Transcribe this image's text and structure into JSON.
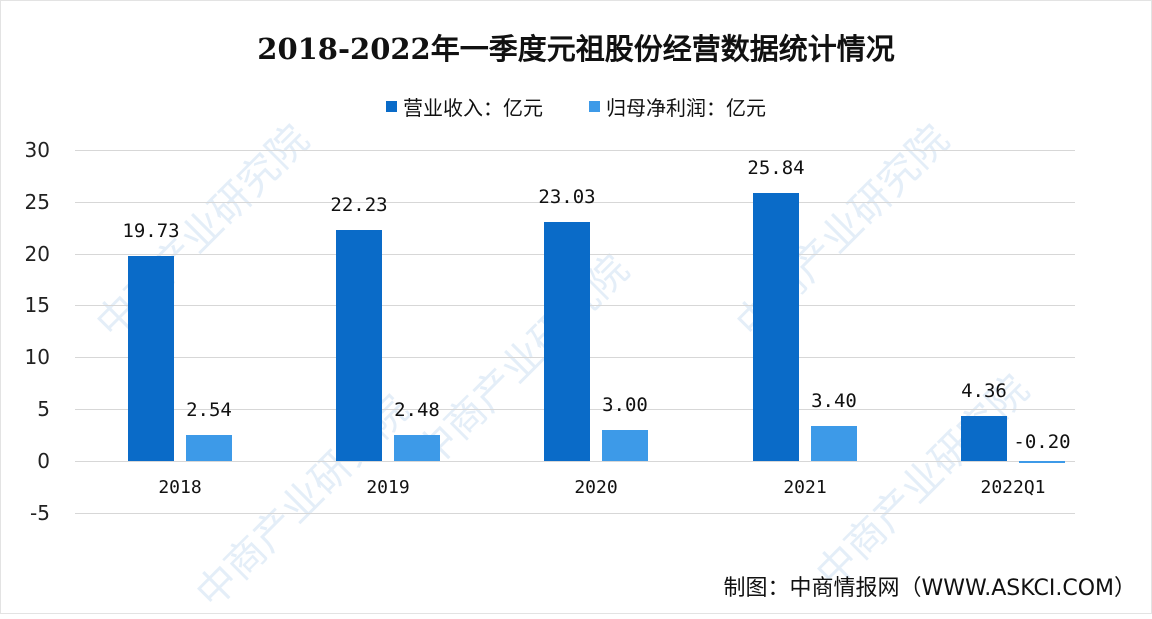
{
  "chart_data": {
    "type": "bar",
    "title": "2018-2022年一季度元祖股份经营数据统计情况",
    "categories": [
      "2018",
      "2019",
      "2020",
      "2021",
      "2022Q1"
    ],
    "series": [
      {
        "name": "营业收入：亿元",
        "color": "#0a6bc8",
        "values": [
          19.73,
          22.23,
          23.03,
          25.84,
          4.36
        ]
      },
      {
        "name": "归母净利润：亿元",
        "color": "#3d9ae8",
        "values": [
          2.54,
          2.48,
          3.0,
          3.4,
          -0.2
        ]
      }
    ],
    "data_labels": {
      "revenue": [
        "19.73",
        "22.23",
        "23.03",
        "25.84",
        "4.36"
      ],
      "profit": [
        "2.54",
        "2.48",
        "3.00",
        "3.40",
        "-0.20"
      ]
    },
    "xlabel": "",
    "ylabel": "",
    "ylim": [
      -5,
      30
    ],
    "yticks": [
      "30",
      "25",
      "20",
      "15",
      "10",
      "5",
      "0",
      "-5"
    ],
    "grid": true,
    "legend_position": "top"
  },
  "source": "制图：中商情报网（WWW.ASKCI.COM）",
  "watermark": "中商产业研究院"
}
